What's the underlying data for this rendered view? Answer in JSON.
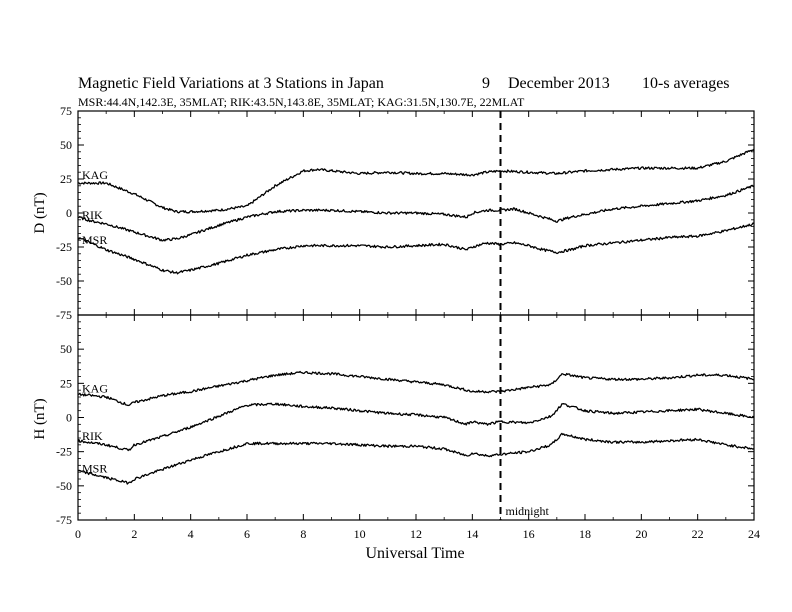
{
  "header": {
    "title": "Magnetic Field Variations at 3 Stations in Japan",
    "date_day": "9",
    "date_monthyear": "December 2013",
    "averaging": "10-s averages",
    "stations_info": "MSR:44.4N,142.3E, 35MLAT;  RIK:43.5N,143.8E, 35MLAT;  KAG:31.5N,130.7E, 22MLAT"
  },
  "chart_data": [
    {
      "type": "line",
      "panel": "top",
      "ylabel": "D (nT)",
      "ylim": [
        -75,
        75
      ],
      "yticks": [
        -75,
        -50,
        -25,
        0,
        25,
        50,
        75
      ],
      "xlim": [
        0,
        24
      ],
      "xticks": [
        0,
        2,
        4,
        6,
        8,
        10,
        12,
        14,
        16,
        18,
        20,
        22,
        24
      ],
      "grid": false,
      "annotations": [
        {
          "x": 15,
          "style": "dashed vertical line"
        }
      ],
      "series": [
        {
          "name": "KAG",
          "x": [
            0,
            1,
            2,
            3,
            3.5,
            4,
            5,
            6,
            7,
            8,
            8.5,
            9,
            10,
            11,
            12,
            13,
            14,
            14.5,
            15,
            16,
            17,
            18,
            19,
            20,
            21,
            22,
            23,
            24
          ],
          "values": [
            22,
            22,
            14,
            4,
            1,
            1,
            2,
            5,
            20,
            31,
            32,
            31,
            29,
            30,
            29,
            29,
            28,
            30,
            31,
            30,
            29,
            31,
            32,
            33,
            33,
            33,
            38,
            47
          ]
        },
        {
          "name": "RIK",
          "x": [
            0,
            0.5,
            1,
            2,
            3,
            3.5,
            4,
            5,
            6,
            7,
            8,
            9,
            10,
            11,
            12,
            13,
            13.8,
            14,
            14.5,
            15,
            15.5,
            16,
            16.5,
            17,
            17.5,
            18,
            19,
            20,
            21,
            22,
            23,
            24
          ],
          "values": [
            -3,
            -6,
            -8,
            -14,
            -20,
            -19,
            -16,
            -9,
            -3,
            1,
            2,
            2,
            1,
            0,
            0,
            -1,
            -3,
            0,
            2,
            2,
            3,
            0,
            -3,
            -6,
            -3,
            -1,
            3,
            5,
            7,
            9,
            13,
            20
          ]
        },
        {
          "name": "MSR",
          "x": [
            0,
            1,
            2,
            3,
            3.5,
            4,
            5,
            6,
            7,
            8,
            9,
            10,
            11,
            12,
            13,
            13.8,
            14,
            14.5,
            15,
            15.5,
            16,
            16.5,
            17,
            17.5,
            18,
            19,
            20,
            21,
            22,
            23,
            24
          ],
          "values": [
            -18,
            -27,
            -34,
            -42,
            -44,
            -42,
            -37,
            -31,
            -27,
            -24,
            -24,
            -24,
            -25,
            -24,
            -23,
            -27,
            -25,
            -22,
            -23,
            -22,
            -24,
            -27,
            -29,
            -27,
            -24,
            -22,
            -20,
            -18,
            -17,
            -13,
            -8
          ]
        }
      ]
    },
    {
      "type": "line",
      "panel": "bottom",
      "ylabel": "H (nT)",
      "xlabel": "Universal Time",
      "ylim": [
        -75,
        75
      ],
      "yticks": [
        -75,
        -50,
        -25,
        0,
        25,
        50
      ],
      "xlim": [
        0,
        24
      ],
      "xticks": [
        0,
        2,
        4,
        6,
        8,
        10,
        12,
        14,
        16,
        18,
        20,
        22,
        24
      ],
      "grid": false,
      "annotations": [
        {
          "x": 15,
          "text": "midnight",
          "style": "dashed vertical line"
        }
      ],
      "series": [
        {
          "name": "KAG",
          "x": [
            0,
            1,
            1.8,
            2,
            3,
            4,
            5,
            6,
            7,
            8,
            9,
            10,
            11,
            12,
            13,
            14,
            15,
            16,
            16.8,
            17.2,
            18,
            19,
            20,
            21,
            22,
            23,
            24
          ],
          "values": [
            17,
            15,
            9,
            11,
            16,
            19,
            23,
            27,
            31,
            33,
            32,
            30,
            28,
            26,
            24,
            19,
            19,
            22,
            24,
            32,
            29,
            28,
            28,
            29,
            31,
            31,
            28
          ]
        },
        {
          "name": "RIK",
          "x": [
            0,
            1,
            1.8,
            2,
            3,
            4,
            5,
            6,
            7,
            8,
            9,
            10,
            11,
            12,
            13,
            13.8,
            14,
            14.5,
            15,
            16,
            16.8,
            17.2,
            18,
            19,
            20,
            21,
            22,
            23,
            24
          ],
          "values": [
            -17,
            -20,
            -24,
            -20,
            -14,
            -7,
            1,
            9,
            10,
            8,
            7,
            5,
            3,
            2,
            0,
            -5,
            -3,
            -5,
            -3,
            -4,
            1,
            10,
            5,
            3,
            4,
            5,
            6,
            3,
            0
          ]
        },
        {
          "name": "MSR",
          "x": [
            0,
            1,
            1.8,
            2,
            3,
            4,
            5,
            6,
            7,
            8,
            9,
            10,
            11,
            12,
            13,
            13.8,
            14,
            14.5,
            15,
            16,
            16.8,
            17.2,
            18,
            19,
            20,
            21,
            22,
            23,
            24
          ],
          "values": [
            -39,
            -44,
            -48,
            -45,
            -38,
            -31,
            -25,
            -19,
            -19,
            -19,
            -19,
            -20,
            -21,
            -21,
            -23,
            -28,
            -26,
            -28,
            -27,
            -25,
            -20,
            -12,
            -16,
            -18,
            -18,
            -17,
            -16,
            -20,
            -23
          ]
        }
      ]
    }
  ]
}
